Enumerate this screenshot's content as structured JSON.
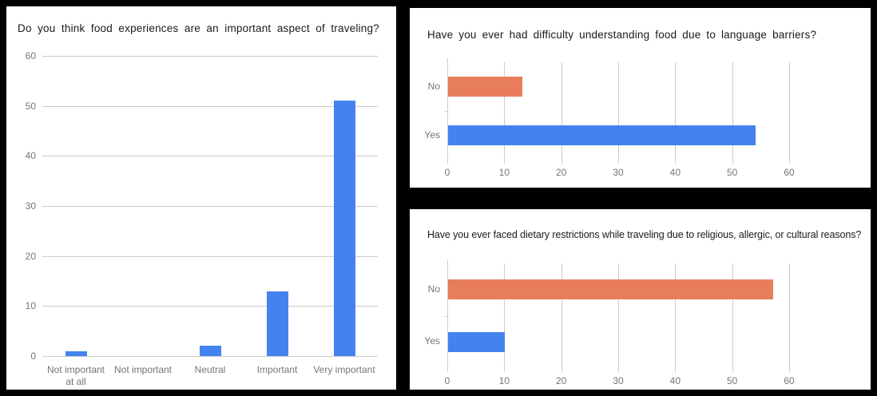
{
  "page": {
    "background": "#000000",
    "panel_background": "#ffffff"
  },
  "colors": {
    "blue": "#4483EF",
    "orange": "#E87D5B",
    "gridline": "#cccccc",
    "axis_label": "#757575",
    "title": "#1a1a1a"
  },
  "chart_data": [
    {
      "type": "bar",
      "orientation": "vertical",
      "title": "Do you think food experiences are an important aspect of traveling?",
      "categories": [
        "Not important at all",
        "Not important",
        "Neutral",
        "Important",
        "Very important"
      ],
      "values": [
        1,
        0,
        2,
        13,
        51
      ],
      "bar_colors": [
        "blue",
        "blue",
        "blue",
        "blue",
        "blue"
      ],
      "xlabel": "",
      "ylabel": "",
      "axis": {
        "min": 0,
        "max": 60,
        "ticks": [
          0,
          10,
          20,
          30,
          40,
          50,
          60
        ]
      },
      "grid": true,
      "legend": "none"
    },
    {
      "type": "bar",
      "orientation": "horizontal",
      "title": "Have you ever had difficulty understanding food due to language barriers?",
      "categories": [
        "No",
        "Yes"
      ],
      "values": [
        13,
        54
      ],
      "bar_colors": [
        "orange",
        "blue"
      ],
      "xlabel": "",
      "ylabel": "",
      "axis": {
        "min": 0,
        "max": 60,
        "ticks": [
          0,
          10,
          20,
          30,
          40,
          50,
          60
        ]
      },
      "grid": true,
      "legend": "none"
    },
    {
      "type": "bar",
      "orientation": "horizontal",
      "title": "Have you ever faced dietary restrictions while traveling due to religious, allergic, or cultural reasons?",
      "categories": [
        "No",
        "Yes"
      ],
      "values": [
        57,
        10
      ],
      "bar_colors": [
        "orange",
        "blue"
      ],
      "xlabel": "",
      "ylabel": "",
      "axis": {
        "min": 0,
        "max": 60,
        "ticks": [
          0,
          10,
          20,
          30,
          40,
          50,
          60
        ]
      },
      "grid": true,
      "legend": "none"
    }
  ]
}
